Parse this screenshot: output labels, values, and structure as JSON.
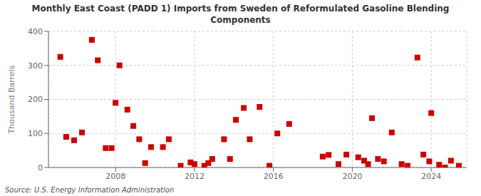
{
  "chart_data": {
    "type": "scatter",
    "title": "Monthly East Coast (PADD 1) Imports from Sweden of Reformulated Gasoline Blending\nComponents",
    "ylabel": "Thousand Barrels",
    "source": "Source: U.S. Energy Information Administration",
    "color": "#cc0000",
    "marker": "square",
    "grid": true,
    "xlim": [
      2004.6,
      2025.8
    ],
    "xticks": [
      2008,
      2012,
      2016,
      2020,
      2024
    ],
    "ylim": [
      0,
      400
    ],
    "yticks": [
      0,
      100,
      200,
      300,
      400
    ],
    "x": [
      2005.2,
      2005.5,
      2005.9,
      2006.3,
      2006.8,
      2007.1,
      2007.5,
      2007.8,
      2008.0,
      2008.2,
      2008.6,
      2008.9,
      2009.2,
      2009.5,
      2009.8,
      2010.4,
      2010.7,
      2011.3,
      2011.8,
      2012.0,
      2012.5,
      2012.7,
      2012.9,
      2013.5,
      2013.8,
      2014.1,
      2014.5,
      2014.8,
      2015.3,
      2015.8,
      2016.2,
      2016.8,
      2018.5,
      2018.8,
      2019.3,
      2019.7,
      2020.3,
      2020.6,
      2020.8,
      2021.0,
      2021.3,
      2021.6,
      2022.0,
      2022.5,
      2022.8,
      2023.3,
      2023.6,
      2023.9,
      2024.0,
      2024.4,
      2024.7,
      2025.0,
      2025.4
    ],
    "values": [
      325,
      90,
      80,
      103,
      375,
      315,
      57,
      57,
      190,
      300,
      170,
      122,
      83,
      13,
      60,
      60,
      83,
      5,
      15,
      10,
      5,
      13,
      25,
      83,
      25,
      140,
      175,
      83,
      178,
      5,
      100,
      128,
      32,
      37,
      10,
      38,
      30,
      20,
      10,
      145,
      25,
      18,
      103,
      10,
      5,
      323,
      38,
      18,
      160,
      8,
      0,
      20,
      5
    ]
  }
}
